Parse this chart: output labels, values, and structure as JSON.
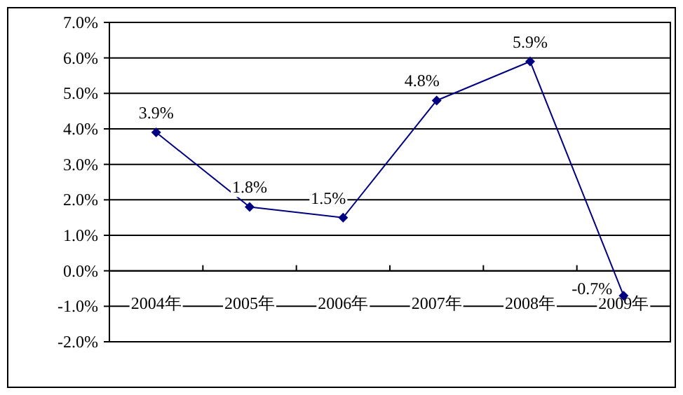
{
  "chart_data": {
    "type": "line",
    "categories": [
      "2004年",
      "2005年",
      "2006年",
      "2007年",
      "2008年",
      "2009年"
    ],
    "values": [
      3.9,
      1.8,
      1.5,
      4.8,
      5.9,
      -0.7
    ],
    "value_labels": [
      "3.9%",
      "1.8%",
      "1.5%",
      "4.8%",
      "5.9%",
      "-0.7%"
    ],
    "color": "#000080",
    "marker": "diamond",
    "grid": "y",
    "ylim": [
      -2,
      7
    ],
    "yticks": [
      {
        "value": -2,
        "label": "-2.0%"
      },
      {
        "value": -1,
        "label": "-1.0%"
      },
      {
        "value": 0,
        "label": "0.0%"
      },
      {
        "value": 1,
        "label": "1.0%"
      },
      {
        "value": 2,
        "label": "2.0%"
      },
      {
        "value": 3,
        "label": "3.0%"
      },
      {
        "value": 4,
        "label": "4.0%"
      },
      {
        "value": 5,
        "label": "5.0%"
      },
      {
        "value": 6,
        "label": "6.0%"
      },
      {
        "value": 7,
        "label": "7.0%"
      }
    ]
  }
}
